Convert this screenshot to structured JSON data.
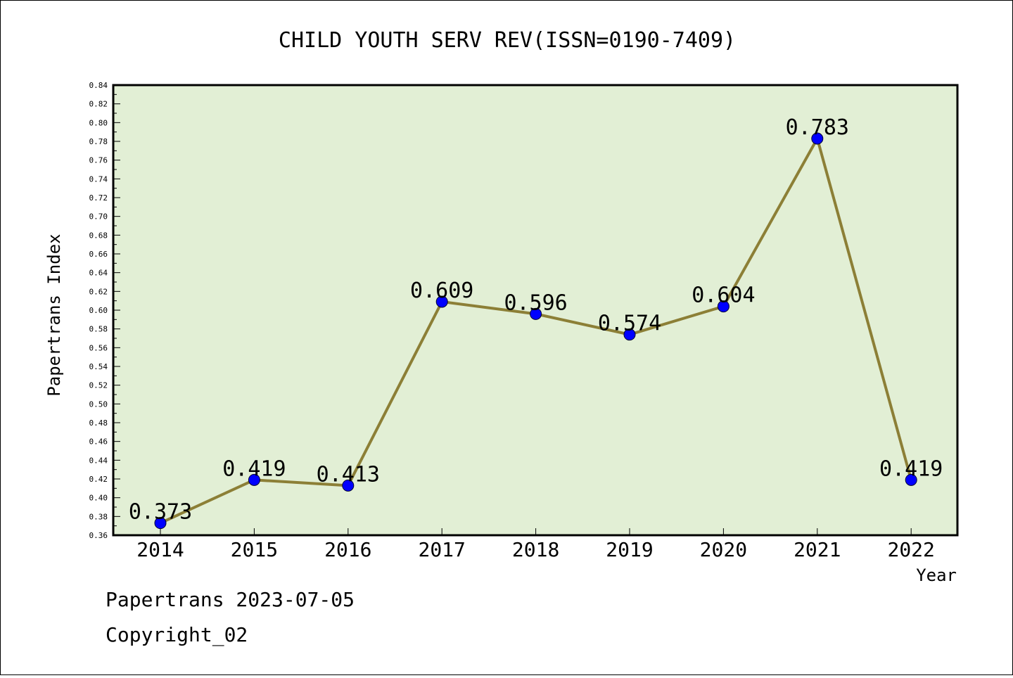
{
  "chart_data": {
    "type": "line",
    "title": "CHILD YOUTH SERV REV(ISSN=0190-7409)",
    "xlabel": "Year",
    "ylabel": "Papertrans Index",
    "categories": [
      "2014",
      "2015",
      "2016",
      "2017",
      "2018",
      "2019",
      "2020",
      "2021",
      "2022"
    ],
    "values": [
      0.373,
      0.419,
      0.413,
      0.609,
      0.596,
      0.574,
      0.604,
      0.783,
      0.419
    ],
    "data_labels": [
      "0.373",
      "0.419",
      "0.413",
      "0.609",
      "0.596",
      "0.574",
      "0.604",
      "0.783",
      "0.419"
    ],
    "ylim": [
      0.36,
      0.84
    ],
    "yticks": [
      "0.36",
      "0.38",
      "0.40",
      "0.42",
      "0.44",
      "0.46",
      "0.48",
      "0.50",
      "0.52",
      "0.54",
      "0.56",
      "0.58",
      "0.60",
      "0.62",
      "0.64",
      "0.66",
      "0.68",
      "0.70",
      "0.72",
      "0.74",
      "0.76",
      "0.78",
      "0.80",
      "0.82",
      "0.84"
    ],
    "grid": false,
    "colors": {
      "plot_background": "#e2efd5",
      "line": "#8c7f36",
      "marker": "#0000ff"
    }
  },
  "footer": {
    "line1": "Papertrans 2023-07-05",
    "line2": "Copyright_02"
  }
}
